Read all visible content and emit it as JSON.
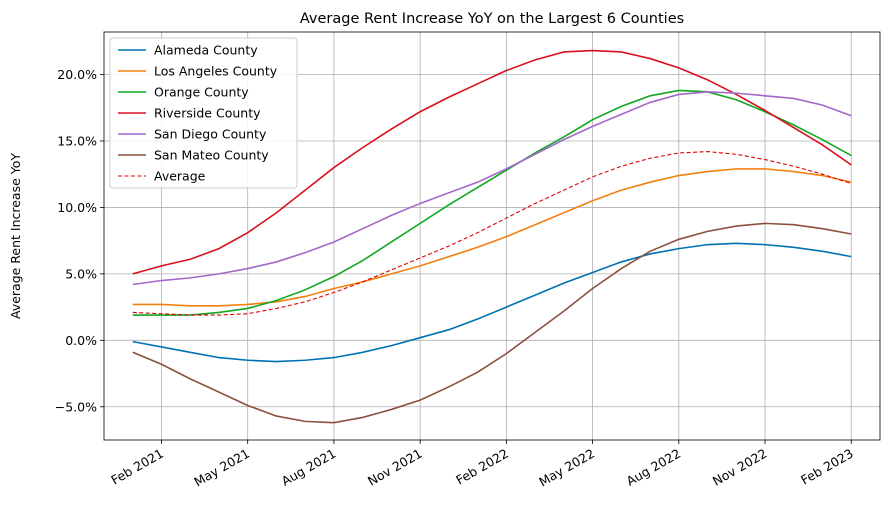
{
  "chart_data": {
    "type": "line",
    "title": "Average Rent Increase YoY on the Largest 6 Counties",
    "ylabel": "Average Rent Increase YoY",
    "x": [
      "2021-01",
      "2021-02",
      "2021-03",
      "2021-04",
      "2021-05",
      "2021-06",
      "2021-07",
      "2021-08",
      "2021-09",
      "2021-10",
      "2021-11",
      "2021-12",
      "2022-01",
      "2022-02",
      "2022-03",
      "2022-04",
      "2022-05",
      "2022-06",
      "2022-07",
      "2022-08",
      "2022-09",
      "2022-10",
      "2022-11",
      "2022-12",
      "2023-01",
      "2023-02"
    ],
    "xlim": [
      "2020-12",
      "2023-03"
    ],
    "xticks": [
      {
        "value": "2021-02",
        "label": "Feb 2021"
      },
      {
        "value": "2021-05",
        "label": "May 2021"
      },
      {
        "value": "2021-08",
        "label": "Aug 2021"
      },
      {
        "value": "2021-11",
        "label": "Nov 2021"
      },
      {
        "value": "2022-02",
        "label": "Feb 2022"
      },
      {
        "value": "2022-05",
        "label": "May 2022"
      },
      {
        "value": "2022-08",
        "label": "Aug 2022"
      },
      {
        "value": "2022-11",
        "label": "Nov 2022"
      },
      {
        "value": "2023-02",
        "label": "Feb 2023"
      }
    ],
    "ylim": [
      -7.5,
      23.2
    ],
    "yticks": [
      {
        "value": -5,
        "label": "−5.0%"
      },
      {
        "value": 0,
        "label": "0.0%"
      },
      {
        "value": 5,
        "label": "5.0%"
      },
      {
        "value": 10,
        "label": "10.0%"
      },
      {
        "value": 15,
        "label": "15.0%"
      },
      {
        "value": 20,
        "label": "20.0%"
      }
    ],
    "grid": true,
    "legend": "upper left",
    "series": [
      {
        "name": "Alameda County",
        "color": "#0072b2",
        "linestyle": "solid",
        "values": [
          -0.1,
          -0.5,
          -0.9,
          -1.3,
          -1.5,
          -1.6,
          -1.5,
          -1.3,
          -0.9,
          -0.4,
          0.2,
          0.8,
          1.6,
          2.5,
          3.4,
          4.3,
          5.1,
          5.9,
          6.5,
          6.9,
          7.2,
          7.3,
          7.2,
          7.0,
          6.7,
          6.3
        ]
      },
      {
        "name": "Los Angeles County",
        "color": "#f28010",
        "linestyle": "solid",
        "values": [
          2.7,
          2.7,
          2.6,
          2.6,
          2.7,
          2.9,
          3.3,
          3.9,
          4.4,
          5.0,
          5.6,
          6.3,
          7.0,
          7.8,
          8.7,
          9.6,
          10.5,
          11.3,
          11.9,
          12.4,
          12.7,
          12.9,
          12.9,
          12.7,
          12.4,
          11.9
        ]
      },
      {
        "name": "Orange County",
        "color": "#10a820",
        "linestyle": "solid",
        "values": [
          1.9,
          1.9,
          1.9,
          2.1,
          2.4,
          3.0,
          3.8,
          4.8,
          6.0,
          7.4,
          8.8,
          10.2,
          11.5,
          12.8,
          14.1,
          15.3,
          16.6,
          17.6,
          18.4,
          18.8,
          18.7,
          18.1,
          17.2,
          16.2,
          15.1,
          13.9
        ]
      },
      {
        "name": "Riverside County",
        "color": "#d91020",
        "linestyle": "solid",
        "values": [
          5.0,
          5.6,
          6.1,
          6.9,
          8.1,
          9.6,
          11.3,
          13.0,
          14.5,
          15.9,
          17.2,
          18.3,
          19.3,
          20.3,
          21.1,
          21.7,
          21.8,
          21.7,
          21.2,
          20.5,
          19.6,
          18.5,
          17.3,
          16.0,
          14.7,
          13.2
        ]
      },
      {
        "name": "San Diego County",
        "color": "#a368c8",
        "linestyle": "solid",
        "values": [
          4.2,
          4.5,
          4.7,
          5.0,
          5.4,
          5.9,
          6.6,
          7.4,
          8.4,
          9.4,
          10.3,
          11.1,
          11.9,
          12.9,
          14.0,
          15.1,
          16.1,
          17.0,
          17.9,
          18.5,
          18.7,
          18.6,
          18.4,
          18.2,
          17.7,
          16.9
        ]
      },
      {
        "name": "San Mateo County",
        "color": "#8c5040",
        "linestyle": "solid",
        "values": [
          -0.9,
          -1.8,
          -2.9,
          -3.9,
          -4.9,
          -5.7,
          -6.1,
          -6.2,
          -5.8,
          -5.2,
          -4.5,
          -3.5,
          -2.4,
          -1.0,
          0.6,
          2.2,
          3.9,
          5.4,
          6.7,
          7.6,
          8.2,
          8.6,
          8.8,
          8.7,
          8.4,
          8.0
        ]
      },
      {
        "name": "Average",
        "color": "#e00000",
        "linestyle": "dashed",
        "values": [
          2.1,
          2.0,
          1.9,
          1.9,
          2.0,
          2.4,
          2.9,
          3.6,
          4.4,
          5.3,
          6.2,
          7.1,
          8.1,
          9.2,
          10.3,
          11.3,
          12.3,
          13.1,
          13.7,
          14.1,
          14.2,
          14.0,
          13.6,
          13.1,
          12.5,
          11.8
        ]
      }
    ]
  }
}
